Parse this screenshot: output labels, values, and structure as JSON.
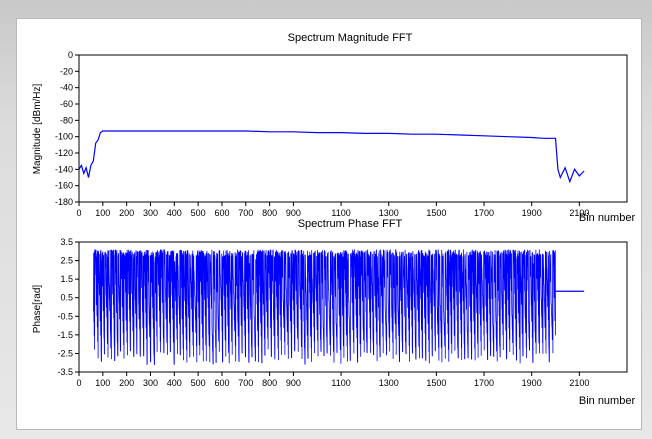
{
  "chart_data": [
    {
      "type": "line",
      "title": "Spectrum Magnitude FFT",
      "xlabel": "Bin number",
      "ylabel": "Magnitude [dBm/Hz]",
      "xlim": [
        0,
        2300
      ],
      "ylim": [
        -180,
        0
      ],
      "xticks": [
        0,
        100,
        200,
        300,
        400,
        500,
        600,
        700,
        800,
        900,
        1100,
        1300,
        1500,
        1700,
        1900,
        2100
      ],
      "yticks": [
        0,
        -20,
        -40,
        -60,
        -80,
        -100,
        -120,
        -140,
        -160,
        -180
      ],
      "series": [
        {
          "color": "#0000ff",
          "x": [
            0,
            10,
            20,
            30,
            40,
            50,
            60,
            70,
            80,
            90,
            100,
            150,
            200,
            300,
            400,
            500,
            600,
            700,
            800,
            900,
            1000,
            1100,
            1200,
            1300,
            1400,
            1500,
            1600,
            1700,
            1800,
            1900,
            1950,
            2000,
            2010,
            2020,
            2040,
            2060,
            2080,
            2100,
            2120
          ],
          "y": [
            -140,
            -135,
            -145,
            -138,
            -150,
            -135,
            -130,
            -108,
            -104,
            -95,
            -93,
            -93,
            -93,
            -93,
            -93,
            -93,
            -93,
            -93,
            -94,
            -94,
            -95,
            -95,
            -96,
            -96,
            -97,
            -97,
            -98,
            -99,
            -100,
            -101,
            -102,
            -102,
            -140,
            -150,
            -138,
            -155,
            -140,
            -148,
            -142
          ]
        }
      ]
    },
    {
      "type": "line",
      "title": "Spectrum Phase FFT",
      "xlabel": "Bin number",
      "ylabel": "Phase[rad]",
      "xlim": [
        0,
        2300
      ],
      "ylim": [
        -3.5,
        3.5
      ],
      "xticks": [
        0,
        100,
        200,
        300,
        400,
        500,
        600,
        700,
        800,
        900,
        1100,
        1300,
        1500,
        1700,
        1900,
        2100
      ],
      "yticks": [
        3.5,
        2.5,
        1.5,
        0.5,
        -0.5,
        -1.5,
        -2.5,
        -3.5
      ],
      "series": [
        {
          "color": "#0000ff",
          "x_range": [
            60,
            2000
          ],
          "y_range": [
            -3.1,
            3.1
          ],
          "flat_x": [
            2000,
            2120
          ],
          "flat_y": 0.85
        }
      ]
    }
  ]
}
